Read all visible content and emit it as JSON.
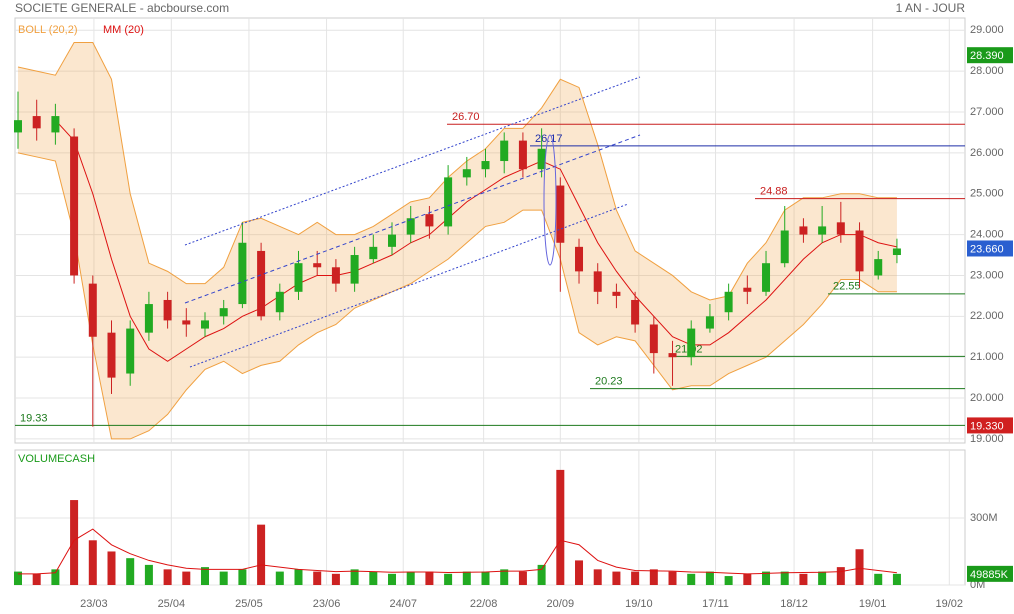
{
  "chart_data": {
    "type": "candlestick",
    "title": "SOCIETE GENERALE - abcbourse.com",
    "period": "1 AN - JOUR",
    "legend": [
      "BOLL (20,2)",
      "MM (20)"
    ],
    "volume_title": "VOLUMECASH",
    "open": [
      26.5,
      26.9,
      26.5,
      26.4,
      22.8,
      21.6,
      20.6,
      21.6,
      22.4,
      21.9,
      21.7,
      22.0,
      22.3,
      23.6,
      22.1,
      22.6,
      23.3,
      23.2,
      22.8,
      23.4,
      23.7,
      24.0,
      24.5,
      24.2,
      25.4,
      25.6,
      25.8,
      26.3,
      25.6,
      25.2,
      23.7,
      23.1,
      22.6,
      22.4,
      21.8,
      21.1,
      21.0,
      21.7,
      22.1,
      22.7,
      22.6,
      23.3,
      24.2,
      24.0,
      24.3,
      24.1,
      23.0,
      23.5
    ],
    "high": [
      27.5,
      27.3,
      27.2,
      26.6,
      23.0,
      21.9,
      21.9,
      22.6,
      22.6,
      22.2,
      22.1,
      22.4,
      24.3,
      23.8,
      22.8,
      23.6,
      23.6,
      23.4,
      23.7,
      24.0,
      24.3,
      24.7,
      24.7,
      25.7,
      25.9,
      26.1,
      26.5,
      26.5,
      26.6,
      25.4,
      23.9,
      23.3,
      22.8,
      22.6,
      22.0,
      21.4,
      21.9,
      22.3,
      22.8,
      23.0,
      23.6,
      24.7,
      24.4,
      24.7,
      24.8,
      24.3,
      23.6,
      23.9
    ],
    "low": [
      26.1,
      26.3,
      26.2,
      22.8,
      19.3,
      20.1,
      20.3,
      21.4,
      21.7,
      21.5,
      21.5,
      21.8,
      22.2,
      21.9,
      21.9,
      22.4,
      23.0,
      22.6,
      22.6,
      23.3,
      23.5,
      23.8,
      23.9,
      24.0,
      25.2,
      25.4,
      25.5,
      25.4,
      25.4,
      22.6,
      22.8,
      22.3,
      22.2,
      21.6,
      20.6,
      20.3,
      20.8,
      21.6,
      21.9,
      22.3,
      22.5,
      23.2,
      23.8,
      23.8,
      23.8,
      22.7,
      22.9,
      23.3
    ],
    "close": [
      26.8,
      26.6,
      26.9,
      23.0,
      21.5,
      20.5,
      21.7,
      22.3,
      21.9,
      21.8,
      21.9,
      22.2,
      23.8,
      22.0,
      22.6,
      23.3,
      23.2,
      22.8,
      23.5,
      23.7,
      24.0,
      24.4,
      24.2,
      25.4,
      25.6,
      25.8,
      26.3,
      25.6,
      26.1,
      23.8,
      23.1,
      22.6,
      22.5,
      21.8,
      21.1,
      21.0,
      21.7,
      22.0,
      22.6,
      22.6,
      23.3,
      24.1,
      24.0,
      24.2,
      24.0,
      23.1,
      23.4,
      23.66
    ],
    "ma": [
      null,
      null,
      26.8,
      26.3,
      25.0,
      23.4,
      22.0,
      21.2,
      20.9,
      21.2,
      21.5,
      21.7,
      22.0,
      22.2,
      22.5,
      22.8,
      23.0,
      23.0,
      23.1,
      23.3,
      23.5,
      23.8,
      24.0,
      24.4,
      24.8,
      25.1,
      25.4,
      25.6,
      25.8,
      25.6,
      24.7,
      23.8,
      23.1,
      22.5,
      22.0,
      21.5,
      21.3,
      21.3,
      21.6,
      22.0,
      22.4,
      22.9,
      23.4,
      23.8,
      24.0,
      24.0,
      23.8,
      23.7
    ],
    "boll_upper": [
      28.1,
      28.0,
      27.9,
      28.7,
      28.7,
      27.8,
      25.0,
      23.3,
      23.1,
      22.8,
      22.8,
      23.2,
      24.3,
      24.4,
      24.2,
      24.0,
      24.3,
      24.0,
      24.0,
      24.2,
      24.5,
      24.8,
      24.9,
      25.4,
      25.8,
      26.1,
      26.6,
      26.6,
      27.1,
      27.8,
      27.6,
      26.2,
      24.6,
      23.6,
      23.3,
      23.0,
      22.6,
      22.4,
      22.5,
      23.3,
      23.8,
      24.6,
      24.9,
      24.9,
      25.0,
      25.0,
      24.9,
      24.9
    ],
    "boll_lower": [
      26.0,
      25.9,
      25.8,
      24.0,
      21.3,
      19.0,
      19.0,
      19.2,
      19.6,
      20.2,
      20.7,
      20.9,
      20.6,
      20.8,
      20.9,
      21.3,
      21.6,
      21.8,
      22.2,
      22.4,
      22.6,
      22.8,
      23.1,
      23.4,
      23.8,
      24.2,
      24.3,
      24.6,
      24.6,
      23.4,
      21.6,
      21.3,
      21.5,
      21.4,
      20.8,
      20.2,
      20.3,
      20.3,
      20.6,
      20.8,
      21.0,
      21.4,
      21.8,
      22.3,
      22.9,
      22.9,
      22.6,
      22.6
    ],
    "volume": [
      60,
      50,
      70,
      380,
      200,
      150,
      120,
      90,
      70,
      60,
      80,
      60,
      70,
      270,
      60,
      70,
      60,
      50,
      70,
      60,
      50,
      60,
      60,
      50,
      60,
      60,
      70,
      60,
      90,
      515,
      110,
      70,
      60,
      60,
      70,
      60,
      50,
      60,
      40,
      50,
      60,
      60,
      50,
      60,
      80,
      160,
      50,
      49.885
    ],
    "volume_ma": [
      50,
      50,
      55,
      200,
      250,
      180,
      140,
      110,
      90,
      75,
      70,
      70,
      70,
      90,
      80,
      70,
      65,
      60,
      62,
      60,
      57,
      58,
      58,
      56,
      57,
      58,
      62,
      62,
      70,
      200,
      180,
      110,
      80,
      65,
      63,
      62,
      58,
      57,
      53,
      50,
      52,
      55,
      56,
      57,
      60,
      75,
      65,
      55
    ],
    "xlim": [
      -0.16,
      50.64
    ],
    "xticks": [
      {
        "value": 4.06,
        "label": "23/03"
      },
      {
        "value": 8.2,
        "label": "25/04"
      },
      {
        "value": 12.35,
        "label": "25/05"
      },
      {
        "value": 16.5,
        "label": "23/06"
      },
      {
        "value": 20.6,
        "label": "24/07"
      },
      {
        "value": 24.9,
        "label": "22/08"
      },
      {
        "value": 29,
        "label": "20/09"
      },
      {
        "value": 33.2,
        "label": "19/10"
      },
      {
        "value": 37.3,
        "label": "17/11"
      },
      {
        "value": 41.5,
        "label": "18/12"
      },
      {
        "value": 45.7,
        "label": "19/01"
      },
      {
        "value": 49.8,
        "label": "19/02"
      }
    ],
    "ylim": [
      18.9,
      29.3
    ],
    "yticks": [
      {
        "value": 19,
        "label": "19.000"
      },
      {
        "value": 20,
        "label": "20.000"
      },
      {
        "value": 21,
        "label": "21.000"
      },
      {
        "value": 22,
        "label": "22.000"
      },
      {
        "value": 23,
        "label": "23.000"
      },
      {
        "value": 24,
        "label": "24.000"
      },
      {
        "value": 25,
        "label": "25.000"
      },
      {
        "value": 26,
        "label": "26.000"
      },
      {
        "value": 27,
        "label": "27.000"
      },
      {
        "value": 28,
        "label": "28.000"
      },
      {
        "value": 29,
        "label": "29.000"
      }
    ],
    "vlim": [
      0,
      604
    ],
    "vticks": [
      {
        "value": 0,
        "label": "0M"
      },
      {
        "value": 300,
        "label": "300M"
      }
    ],
    "price_flags": [
      {
        "value": 28.39,
        "label": "28.390",
        "color": "#1a9a1a"
      },
      {
        "value": 23.66,
        "label": "23.660",
        "color": "#2a5fd0"
      },
      {
        "value": 19.33,
        "label": "19.330",
        "color": "#d02020"
      }
    ],
    "last_volume": {
      "value": 49.885,
      "label": "49885K",
      "color": "#1a9a1a"
    },
    "levels": [
      {
        "value": 26.7,
        "label": "26.70",
        "color": "#c81e1e"
      },
      {
        "value": 26.17,
        "label": "26.17",
        "color": "#1e2ea8"
      },
      {
        "value": 24.88,
        "label": "24.88",
        "color": "#c81e1e"
      },
      {
        "value": 22.55,
        "label": "22.55",
        "color": "#1e7a1e"
      },
      {
        "value": 21.02,
        "label": "21.02",
        "color": "#1e7a1e"
      },
      {
        "value": 20.23,
        "label": "20.23",
        "color": "#1e7a1e"
      },
      {
        "value": 19.33,
        "label": "19.33",
        "color": "#1e7a1e"
      }
    ],
    "up_color": "#22aa22",
    "down_color": "#cc2222",
    "ma_color": "#dd1111",
    "band_color": "#f0a040"
  }
}
